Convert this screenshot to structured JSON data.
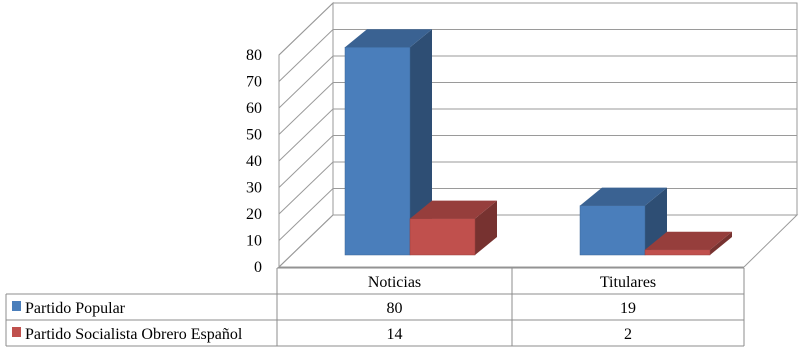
{
  "chart_data": {
    "type": "bar",
    "style": "3d-clustered-column",
    "categories": [
      "Noticias",
      "Titulares"
    ],
    "series": [
      {
        "name": "Partido Popular",
        "values": [
          80,
          19
        ],
        "color": "#4a7ebb"
      },
      {
        "name": "Partido Socialista Obrero Español",
        "values": [
          14,
          2
        ],
        "color": "#c0504d"
      }
    ],
    "ylim": [
      0,
      80
    ],
    "yticks": [
      0,
      10,
      20,
      30,
      40,
      50,
      60,
      70,
      80
    ],
    "grid": true,
    "legend": "data-table"
  }
}
